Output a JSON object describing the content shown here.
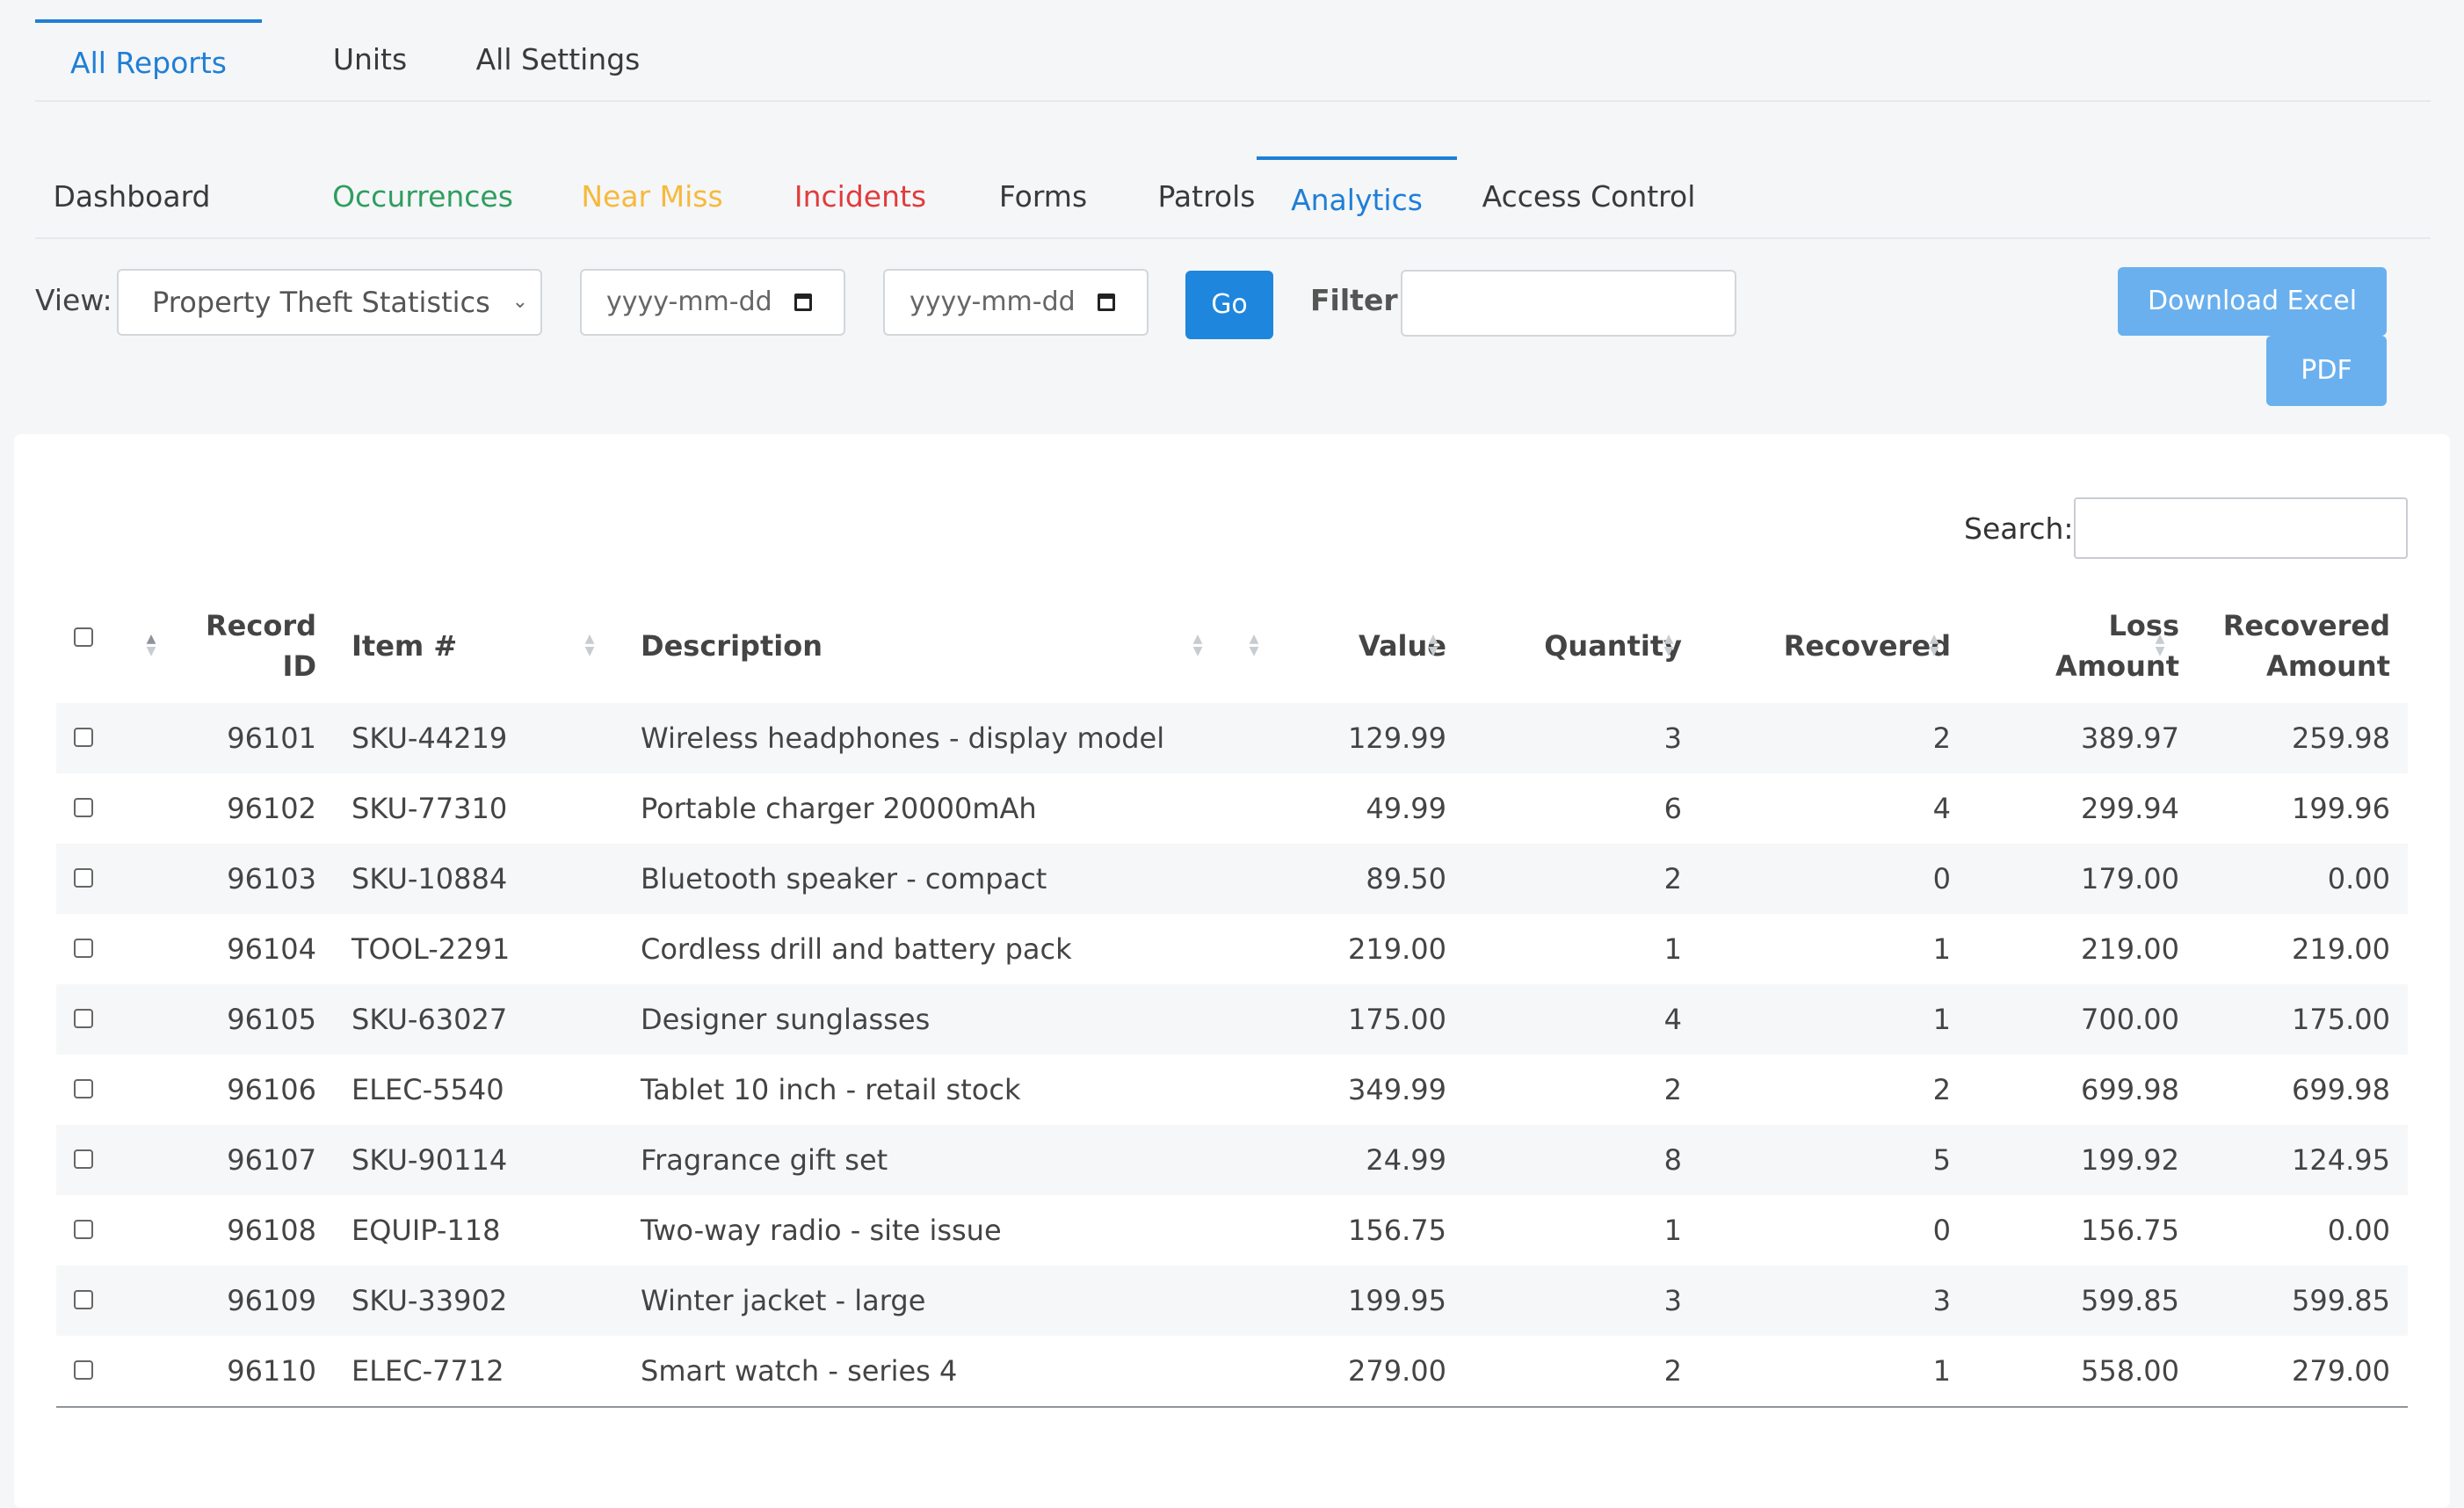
{
  "top_tabs": [
    {
      "label": "All Reports",
      "active": true
    },
    {
      "label": "Units",
      "active": false
    },
    {
      "label": "All Settings",
      "active": false
    }
  ],
  "sub_tabs": [
    {
      "label": "Dashboard",
      "color": "#3a3a3a"
    },
    {
      "label": "Occurrences",
      "color": "#2e9e5e"
    },
    {
      "label": "Near Miss",
      "color": "#f6b93b"
    },
    {
      "label": "Incidents",
      "color": "#e03c3c"
    },
    {
      "label": "Forms",
      "color": "#3a3a3a"
    },
    {
      "label": "Patrols",
      "color": "#3a3a3a"
    },
    {
      "label": "Analytics",
      "color": "#1f7fd6",
      "active": true
    },
    {
      "label": "Access Control",
      "color": "#3a3a3a"
    }
  ],
  "toolbar": {
    "view_label": "View:",
    "view_value": "Property Theft Statistics",
    "date_from": "yyyy-mm-dd",
    "date_to": "yyyy-mm-dd",
    "go_label": "Go",
    "filter_label": "Filter:",
    "filter_value": "",
    "download_excel_label": "Download Excel",
    "pdf_label": "PDF"
  },
  "search": {
    "label": "Search:",
    "value": ""
  },
  "table": {
    "columns": [
      {
        "line1": "Record",
        "line2": "ID"
      },
      {
        "line1": "Item #",
        "line2": ""
      },
      {
        "line1": "Description",
        "line2": ""
      },
      {
        "line1": "Value",
        "line2": ""
      },
      {
        "line1": "Quantity",
        "line2": ""
      },
      {
        "line1": "Recovered",
        "line2": ""
      },
      {
        "line1": "Loss",
        "line2": "Amount"
      },
      {
        "line1": "Recovered",
        "line2": "Amount"
      }
    ],
    "rows": [
      [
        "96101",
        "SKU-44219",
        "Wireless headphones - display model",
        "129.99",
        "3",
        "2",
        "389.97",
        "259.98"
      ],
      [
        "96102",
        "SKU-77310",
        "Portable charger 20000mAh",
        "49.99",
        "6",
        "4",
        "299.94",
        "199.96"
      ],
      [
        "96103",
        "SKU-10884",
        "Bluetooth speaker - compact",
        "89.50",
        "2",
        "0",
        "179.00",
        "0.00"
      ],
      [
        "96104",
        "TOOL-2291",
        "Cordless drill and battery pack",
        "219.00",
        "1",
        "1",
        "219.00",
        "219.00"
      ],
      [
        "96105",
        "SKU-63027",
        "Designer sunglasses",
        "175.00",
        "4",
        "1",
        "700.00",
        "175.00"
      ],
      [
        "96106",
        "ELEC-5540",
        "Tablet 10 inch - retail stock",
        "349.99",
        "2",
        "2",
        "699.98",
        "699.98"
      ],
      [
        "96107",
        "SKU-90114",
        "Fragrance gift set",
        "24.99",
        "8",
        "5",
        "199.92",
        "124.95"
      ],
      [
        "96108",
        "EQUIP-118",
        "Two-way radio - site issue",
        "156.75",
        "1",
        "0",
        "156.75",
        "0.00"
      ],
      [
        "96109",
        "SKU-33902",
        "Winter jacket - large",
        "199.95",
        "3",
        "3",
        "599.85",
        "599.85"
      ],
      [
        "96110",
        "ELEC-7712",
        "Smart watch - series 4",
        "279.00",
        "2",
        "1",
        "558.00",
        "279.00"
      ]
    ]
  }
}
